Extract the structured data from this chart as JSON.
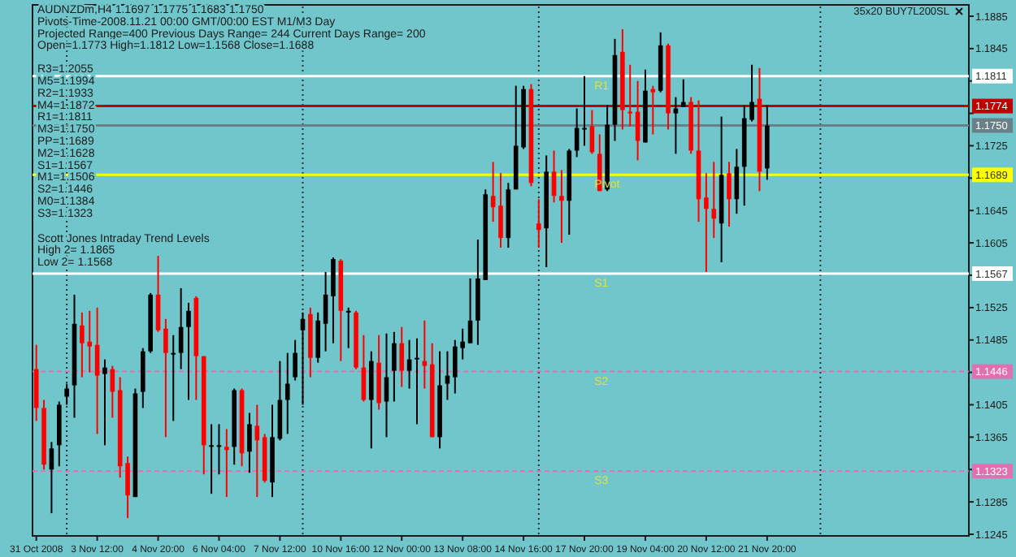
{
  "chart_data": {
    "type": "candlestick",
    "title": "AUDNZDm,H4  1.1697 1.1775 1.1683 1.1750",
    "subtitle": "35x20 BUY7L200SL",
    "categories": [
      "31 Oct 2008",
      null,
      null,
      null,
      null,
      null,
      null,
      null,
      "3 Nov 12:00",
      null,
      null,
      null,
      null,
      null,
      null,
      null,
      "4 Nov 20:00",
      null,
      null,
      null,
      null,
      null,
      null,
      null,
      "6 Nov 04:00",
      null,
      null,
      null,
      null,
      null,
      null,
      null,
      "7 Nov 12:00",
      null,
      null,
      null,
      null,
      null,
      null,
      null,
      "10 Nov 16:00",
      null,
      null,
      null,
      null,
      null,
      null,
      null,
      "12 Nov 00:00",
      null,
      null,
      null,
      null,
      null,
      null,
      null,
      "13 Nov 08:00",
      null,
      null,
      null,
      null,
      null,
      null,
      null,
      "14 Nov 16:00",
      null,
      null,
      null,
      null,
      null,
      null,
      null,
      "17 Nov 20:00",
      null,
      null,
      null,
      null,
      null,
      null,
      null,
      "19 Nov 04:00",
      null,
      null,
      null,
      null,
      null,
      null,
      null,
      "20 Nov 12:00",
      null,
      null,
      null,
      null,
      null,
      null,
      null,
      "21 Nov 20:00",
      null,
      null,
      null,
      null,
      null,
      null,
      null,
      null,
      null,
      null,
      null,
      null,
      null,
      null,
      null,
      null,
      null,
      null,
      null,
      null,
      null,
      null,
      null,
      null,
      null,
      null
    ],
    "ohlc": [
      [
        1.1449,
        1.1479,
        1.1385,
        1.1401
      ],
      [
        1.1401,
        1.1411,
        1.1325,
        1.1331
      ],
      [
        1.1325,
        1.1359,
        1.1271,
        1.1351
      ],
      [
        1.1355,
        1.1409,
        1.1329,
        1.1405
      ],
      [
        1.1415,
        1.1431,
        1.1405,
        1.1425
      ],
      [
        1.1429,
        1.1541,
        1.1389,
        1.1505
      ],
      [
        1.1503,
        1.1519,
        1.1439,
        1.1481
      ],
      [
        1.1483,
        1.1521,
        1.1445,
        1.1477
      ],
      [
        1.1479,
        1.1525,
        1.1369,
        1.1441
      ],
      [
        1.1443,
        1.1461,
        1.1355,
        1.1451
      ],
      [
        1.1449,
        1.1453,
        1.1389,
        1.1421
      ],
      [
        1.1423,
        1.1439,
        1.1315,
        1.1329
      ],
      [
        1.1333,
        1.1341,
        1.1265,
        1.1293
      ],
      [
        1.1291,
        1.1425,
        1.1291,
        1.1419
      ],
      [
        1.1421,
        1.1475,
        1.1401,
        1.1471
      ],
      [
        1.1471,
        1.1543,
        1.1469,
        1.1541
      ],
      [
        1.1541,
        1.1589,
        1.1495,
        1.1497
      ],
      [
        1.1499,
        1.1511,
        1.1365,
        1.1469
      ],
      [
        1.1467,
        1.1491,
        1.1385,
        1.1469
      ],
      [
        1.1469,
        1.1549,
        1.1449,
        1.1501
      ],
      [
        1.1501,
        1.1531,
        1.1411,
        1.1521
      ],
      [
        1.1537,
        1.1539,
        1.1411,
        1.1465
      ],
      [
        1.1465,
        1.1465,
        1.1319,
        1.1355
      ],
      [
        1.1353,
        1.1381,
        1.1295,
        1.1355
      ],
      [
        1.1353,
        1.1381,
        1.1319,
        1.1355
      ],
      [
        1.1353,
        1.1375,
        1.1291,
        1.1349
      ],
      [
        1.1353,
        1.1425,
        1.1331,
        1.1423
      ],
      [
        1.1423,
        1.1425,
        1.1329,
        1.1345
      ],
      [
        1.1347,
        1.1395,
        1.1321,
        1.1381
      ],
      [
        1.1379,
        1.1405,
        1.1291,
        1.1361
      ],
      [
        1.1365,
        1.1369,
        1.1309,
        1.1311
      ],
      [
        1.1309,
        1.1405,
        1.1291,
        1.1365
      ],
      [
        1.1363,
        1.1459,
        1.1361,
        1.1411
      ],
      [
        1.1411,
        1.1469,
        1.1369,
        1.1431
      ],
      [
        1.1439,
        1.1485,
        1.1435,
        1.1469
      ],
      [
        1.1497,
        1.1519,
        1.1405,
        1.1511
      ],
      [
        1.1517,
        1.1525,
        1.1439,
        1.1463
      ],
      [
        1.1463,
        1.1519,
        1.1457,
        1.1509
      ],
      [
        1.1505,
        1.1569,
        1.1471,
        1.1541
      ],
      [
        1.1539,
        1.1587,
        1.1481,
        1.1585
      ],
      [
        1.1583,
        1.1585,
        1.1459,
        1.1521
      ],
      [
        1.1519,
        1.1525,
        1.1475,
        1.1521
      ],
      [
        1.1519,
        1.1521,
        1.1449,
        1.1451
      ],
      [
        1.1451,
        1.1491,
        1.1409,
        1.1411
      ],
      [
        1.1411,
        1.1471,
        1.1351,
        1.1459
      ],
      [
        1.1457,
        1.1491,
        1.1399,
        1.1407
      ],
      [
        1.1409,
        1.1493,
        1.1365,
        1.1439
      ],
      [
        1.1447,
        1.1495,
        1.1409,
        1.1481
      ],
      [
        1.1481,
        1.1501,
        1.1427,
        1.1447
      ],
      [
        1.1447,
        1.1485,
        1.1425,
        1.1461
      ],
      [
        1.1461,
        1.1487,
        1.1381,
        1.1463
      ],
      [
        1.1459,
        1.1509,
        1.1425,
        1.1453
      ],
      [
        1.1455,
        1.1481,
        1.1365,
        1.1365
      ],
      [
        1.1365,
        1.1471,
        1.1351,
        1.1429
      ],
      [
        1.1431,
        1.1471,
        1.1411,
        1.1441
      ],
      [
        1.1439,
        1.1485,
        1.1419,
        1.1477
      ],
      [
        1.1475,
        1.1499,
        1.1461,
        1.1483
      ],
      [
        1.1481,
        1.1561,
        1.1481,
        1.1509
      ],
      [
        1.1509,
        1.1609,
        1.1479,
        1.1561
      ],
      [
        1.1559,
        1.1671,
        1.1559,
        1.1665
      ],
      [
        1.1663,
        1.1705,
        1.1631,
        1.1649
      ],
      [
        1.1651,
        1.1691,
        1.1599,
        1.1611
      ],
      [
        1.1611,
        1.1679,
        1.1599,
        1.1671
      ],
      [
        1.1671,
        1.1799,
        1.1671,
        1.1725
      ],
      [
        1.1723,
        1.1799,
        1.1721,
        1.1795
      ],
      [
        1.1795,
        1.1801,
        1.1675,
        1.1679
      ],
      [
        1.1629,
        1.1659,
        1.1599,
        1.1621
      ],
      [
        1.1623,
        1.1713,
        1.1575,
        1.1693
      ],
      [
        1.1693,
        1.1719,
        1.1655,
        1.1663
      ],
      [
        1.1663,
        1.1695,
        1.1605,
        1.1657
      ],
      [
        1.1657,
        1.1721,
        1.1615,
        1.1719
      ],
      [
        1.1719,
        1.1771,
        1.1711,
        1.1747
      ],
      [
        1.1745,
        1.1811,
        1.1725,
        1.1747
      ],
      [
        1.1749,
        1.1769,
        1.1715,
        1.1717
      ],
      [
        1.1715,
        1.1739,
        1.1669,
        1.1669
      ],
      [
        1.1671,
        1.1775,
        1.1669,
        1.1751
      ],
      [
        1.1751,
        1.1857,
        1.1731,
        1.1837
      ],
      [
        1.1841,
        1.1869,
        1.1745,
        1.1769
      ],
      [
        1.1767,
        1.1825,
        1.1749,
        1.1765
      ],
      [
        1.1767,
        1.1805,
        1.1707,
        1.1731
      ],
      [
        1.1729,
        1.1819,
        1.1729,
        1.1793
      ],
      [
        1.1795,
        1.1799,
        1.1739,
        1.1791
      ],
      [
        1.1793,
        1.1865,
        1.1791,
        1.1849
      ],
      [
        1.1849,
        1.1851,
        1.1745,
        1.1765
      ],
      [
        1.1765,
        1.1785,
        1.1715,
        1.1771
      ],
      [
        1.1773,
        1.1807,
        1.1773,
        1.1779
      ],
      [
        1.1779,
        1.1785,
        1.1715,
        1.1719
      ],
      [
        1.1719,
        1.1781,
        1.1631,
        1.1659
      ],
      [
        1.1661,
        1.1691,
        1.1569,
        1.1647
      ],
      [
        1.1647,
        1.1705,
        1.1611,
        1.1635
      ],
      [
        1.1629,
        1.1761,
        1.1581,
        1.1689
      ],
      [
        1.1691,
        1.1705,
        1.1625,
        1.1659
      ],
      [
        1.1659,
        1.1721,
        1.1641,
        1.1699
      ],
      [
        1.1699,
        1.1775,
        1.1651,
        1.1759
      ],
      [
        1.1757,
        1.1825,
        1.1755,
        1.1779
      ],
      [
        1.1783,
        1.1821,
        1.1669,
        1.1693
      ],
      [
        1.1697,
        1.1775,
        1.1683,
        1.175
      ],
      null,
      null,
      null,
      null,
      null,
      null,
      null,
      null,
      null,
      null,
      null,
      null,
      null,
      null,
      null,
      null,
      null,
      null,
      null,
      null,
      null,
      null,
      null,
      null,
      null,
      null
    ],
    "colors": [
      "#ff0000",
      "#ff0000",
      "#000000",
      "#000000",
      "#000000",
      "#000000",
      "#ff0000",
      "#ff0000",
      "#ff0000",
      "#000000",
      "#ff0000",
      "#ff0000",
      "#ff0000",
      "#000000",
      "#000000",
      "#000000",
      "#ff0000",
      "#ff0000",
      "#000000",
      "#000000",
      "#000000",
      "#ff0000",
      "#ff0000",
      "#000000",
      "#000000",
      "#ff0000",
      "#000000",
      "#ff0000",
      "#000000",
      "#ff0000",
      "#ff0000",
      "#000000",
      "#000000",
      "#000000",
      "#000000",
      "#000000",
      "#ff0000",
      "#000000",
      "#000000",
      "#000000",
      "#ff0000",
      "#000000",
      "#ff0000",
      "#ff0000",
      "#000000",
      "#ff0000",
      "#000000",
      "#000000",
      "#ff0000",
      "#000000",
      "#000000",
      "#ff0000",
      "#ff0000",
      "#000000",
      "#000000",
      "#000000",
      "#000000",
      "#000000",
      "#000000",
      "#000000",
      "#ff0000",
      "#ff0000",
      "#000000",
      "#000000",
      "#000000",
      "#ff0000",
      "#ff0000",
      "#000000",
      "#ff0000",
      "#ff0000",
      "#000000",
      "#000000",
      "#000000",
      "#ff0000",
      "#ff0000",
      "#000000",
      "#000000",
      "#ff0000",
      "#ff0000",
      "#ff0000",
      "#000000",
      "#ff0000",
      "#000000",
      "#ff0000",
      "#000000",
      "#000000",
      "#ff0000",
      "#ff0000",
      "#ff0000",
      "#ff0000",
      "#000000",
      "#ff0000",
      "#000000",
      "#000000",
      "#000000",
      "#ff0000",
      "#000000",
      null,
      null,
      null,
      null,
      null,
      null,
      null,
      null,
      null,
      null,
      null,
      null,
      null,
      null,
      null,
      null,
      null,
      null,
      null,
      null,
      null,
      null,
      null,
      null,
      null,
      null
    ],
    "grid": "x",
    "ylim": [
      1.1243,
      1.1899
    ],
    "yticks": [
      1.1885,
      1.1845,
      {
        "value": 1.1805,
        "label": null
      },
      {
        "value": 1.1765,
        "label": null
      },
      1.1725,
      {
        "value": 1.1685,
        "label": null
      },
      1.1645,
      1.1605,
      {
        "value": 1.1565,
        "label": null
      },
      1.1525,
      1.1485,
      {
        "value": 1.1445,
        "label": null
      },
      1.1405,
      1.1365,
      {
        "value": 1.1325,
        "label": null
      },
      1.1285,
      1.1245
    ],
    "ref_lines": [
      {
        "axis": "y",
        "value": 1.1811,
        "label": "1.1811",
        "color": "#ffffff"
      },
      {
        "axis": "y",
        "value": 1.1774,
        "label": "1.1774",
        "color": "#c00000"
      },
      {
        "axis": "y",
        "value": 1.175,
        "label": "1.1750",
        "color": "#6a8088"
      },
      {
        "axis": "y",
        "value": 1.1689,
        "label": "1.1689",
        "color": "#ffff00"
      },
      {
        "axis": "y",
        "value": 1.1567,
        "label": "1.1567",
        "color": "#ffffff"
      },
      {
        "axis": "y",
        "value": 1.1446,
        "label": "1.1446",
        "color": "#e070b0",
        "line_style": "dashed"
      },
      {
        "axis": "y",
        "value": 1.1323,
        "label": "1.1323",
        "color": "#e070b0",
        "line_style": "dashed"
      }
    ],
    "annotations": [
      "Pivots-Time-2008.11.21 00:00 GMT/00:00 EST M1/M3 Day",
      "Projected Range=400 Previous Days Range= 244 Current Days Range= 200",
      "Open=1.1773 High=1.1812 Low=1.1568 Close=1.1688",
      "R3=1.2055",
      "M5=1.1994",
      "R2=1.1933",
      "M4=1.1872",
      "R1=1.1811",
      "M3=1.1750",
      "PP=1.1689",
      "M2=1.1628",
      "S1=1.1567",
      "M1=1.1506",
      "S2=1.1446",
      "M0=1.1384",
      "S3=1.1323",
      "Scott Jones Intraday Trend Levels",
      "High 2= 1.1865",
      "Low 2= 1.1568",
      {
        "text": "R1",
        "y": 1.1811
      },
      {
        "text": "Pivot",
        "y": 1.1689
      },
      {
        "text": "S1",
        "y": 1.1567
      },
      {
        "text": "S2",
        "y": 1.1446
      },
      {
        "text": "S3",
        "y": 1.1323
      }
    ]
  }
}
